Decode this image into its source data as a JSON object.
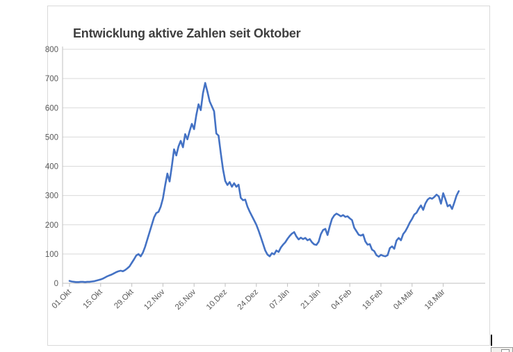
{
  "chart": {
    "title": "Entwicklung aktive Zahlen seit Oktober",
    "title_color": "#3f3f3f",
    "line_color": "#4472C4",
    "gridline_color": "#d9d9d9",
    "axis_line_color": "#bfbfbf",
    "label_color": "#595959",
    "frame_border_color": "#d9d9d9"
  },
  "chart_data": {
    "type": "line",
    "title": "Entwicklung aktive Zahlen seit Oktober",
    "xlabel": "",
    "ylabel": "",
    "ylim": [
      0,
      800
    ],
    "y_ticks": [
      0,
      100,
      200,
      300,
      400,
      500,
      600,
      700,
      800
    ],
    "grid": "horizontal",
    "legend": "none",
    "x_tick_labels": [
      "01.Okt",
      "15.Okt",
      "29.Okt",
      "12.Nov",
      "26.Nov",
      "10.Dez",
      "24.Dez",
      "07.Jän",
      "21.Jän",
      "04.Feb",
      "18.Feb",
      "04.Mär",
      "18.Mär"
    ],
    "x_tick_interval_days": 14,
    "start_date": "01.Okt",
    "series": [
      {
        "name": "aktive Zahlen",
        "cadence": "daily",
        "values": [
          8,
          6,
          5,
          4,
          4,
          5,
          5,
          4,
          5,
          5,
          6,
          7,
          9,
          11,
          13,
          16,
          20,
          24,
          27,
          30,
          34,
          38,
          41,
          43,
          41,
          45,
          51,
          58,
          70,
          82,
          95,
          100,
          92,
          105,
          125,
          150,
          175,
          200,
          225,
          240,
          244,
          262,
          290,
          335,
          375,
          348,
          400,
          458,
          437,
          468,
          487,
          465,
          510,
          492,
          520,
          545,
          527,
          575,
          612,
          592,
          650,
          685,
          655,
          622,
          605,
          588,
          512,
          505,
          445,
          390,
          350,
          336,
          346,
          330,
          342,
          330,
          337,
          292,
          284,
          286,
          262,
          245,
          230,
          215,
          200,
          180,
          158,
          135,
          112,
          98,
          92,
          103,
          99,
          112,
          107,
          122,
          132,
          140,
          152,
          162,
          170,
          175,
          160,
          150,
          156,
          151,
          155,
          147,
          151,
          140,
          133,
          131,
          142,
          168,
          182,
          186,
          165,
          195,
          220,
          232,
          238,
          234,
          229,
          233,
          227,
          229,
          222,
          216,
          190,
          178,
          166,
          163,
          167,
          143,
          132,
          134,
          115,
          110,
          96,
          91,
          97,
          94,
          92,
          96,
          120,
          126,
          118,
          146,
          155,
          147,
          168,
          178,
          192,
          208,
          220,
          235,
          241,
          255,
          266,
          251,
          273,
          286,
          292,
          289,
          295,
          303,
          297,
          272,
          308,
          287,
          263,
          268,
          254,
          276,
          300,
          315
        ]
      }
    ]
  },
  "decorations": {
    "cursor_mark": "text-cursor",
    "corner_button_icon": "picture-icon"
  }
}
